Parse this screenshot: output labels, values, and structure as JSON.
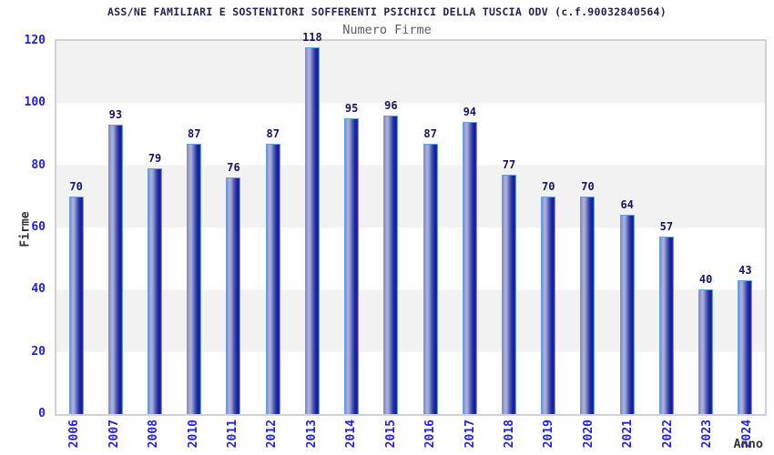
{
  "header": {
    "title": "ASS/NE FAMILIARI E SOSTENITORI SOFFERENTI PSICHICI DELLA TUSCIA ODV (c.f.90032840564)",
    "subtitle": "Numero Firme"
  },
  "chart_data": {
    "type": "bar",
    "title": "ASS/NE FAMILIARI E SOSTENITORI SOFFERENTI PSICHICI DELLA TUSCIA ODV (c.f.90032840564)",
    "subtitle": "Numero Firme",
    "xlabel": "Anno",
    "ylabel": "Firme",
    "categories": [
      "2006",
      "2007",
      "2008",
      "2010",
      "2011",
      "2012",
      "2013",
      "2014",
      "2015",
      "2016",
      "2017",
      "2018",
      "2019",
      "2020",
      "2021",
      "2022",
      "2023",
      "2024"
    ],
    "values": [
      70,
      93,
      79,
      87,
      76,
      87,
      118,
      95,
      96,
      87,
      94,
      77,
      70,
      70,
      64,
      57,
      40,
      43
    ],
    "ylim": [
      0,
      120
    ],
    "yticks": [
      0,
      20,
      40,
      60,
      80,
      100,
      120
    ],
    "grid": "alternating-horizontal-bands",
    "legend_position": "none",
    "colors": {
      "tick_label": "#2323cb",
      "value_label": "#14145f",
      "axis_title": "#333333",
      "chart_title": "#23234b",
      "chart_subtitle": "#5d5d5d",
      "bar_dark": "#141c92",
      "bar_mid": "#6570bc",
      "bar_highlight": "#aeb3dc",
      "bar_border": "#64a0e0",
      "band_gray": "#f2f2f2",
      "band_white": "#ffffff",
      "plot_border": "#d2d2d2"
    }
  }
}
